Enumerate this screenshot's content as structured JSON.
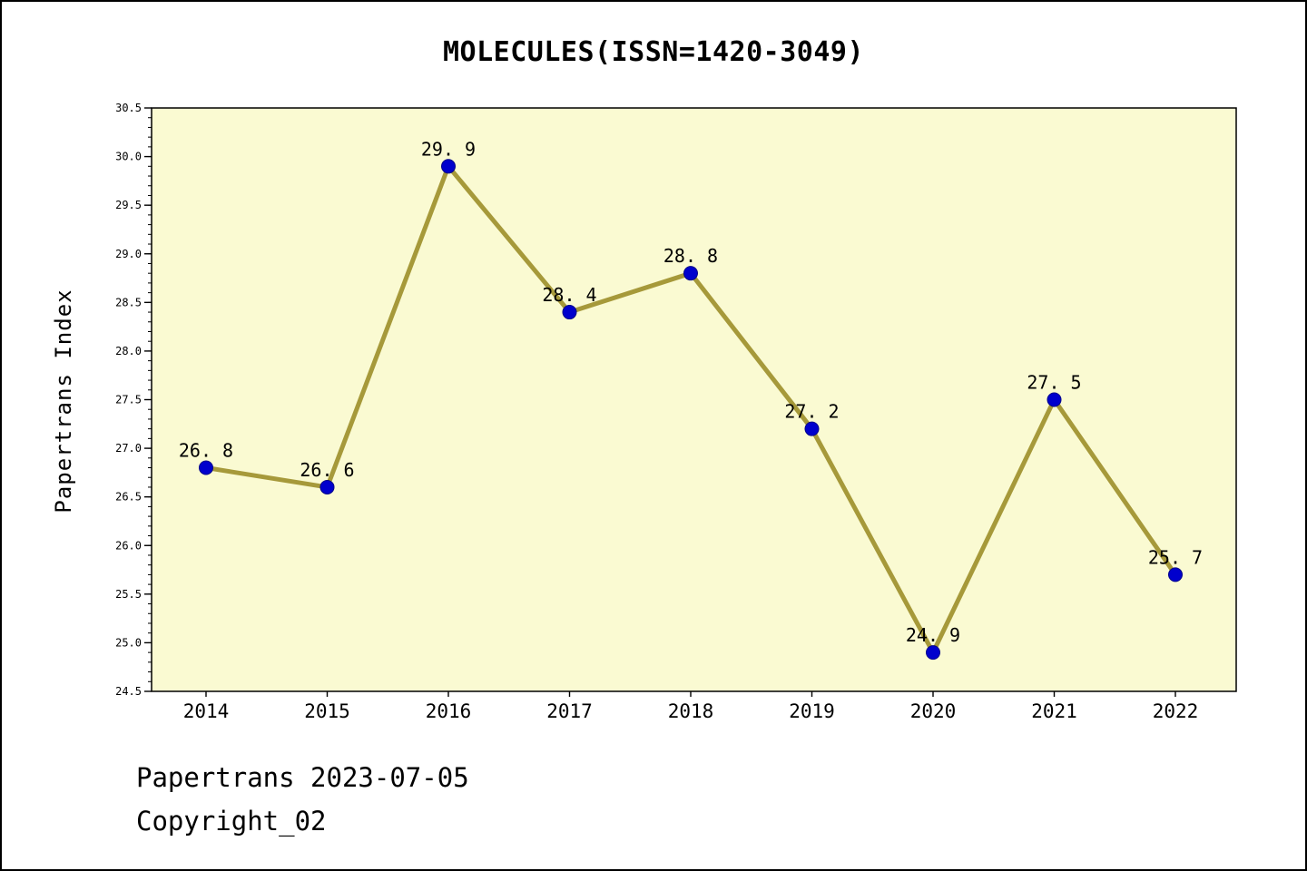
{
  "page": {
    "title": "MOLECULES(ISSN=1420-3049)",
    "footer_line1": "Papertrans 2023-07-05",
    "footer_line2": "Copyright_02"
  },
  "chart_data": {
    "type": "line",
    "title": "MOLECULES(ISSN=1420-3049)",
    "xlabel": "",
    "ylabel": "Papertrans Index",
    "categories": [
      2014,
      2015,
      2016,
      2017,
      2018,
      2019,
      2020,
      2021,
      2022
    ],
    "values": [
      26.8,
      26.6,
      29.9,
      28.4,
      28.8,
      27.2,
      24.9,
      27.5,
      25.7
    ],
    "point_labels": [
      "26. 8",
      "26. 6",
      "29. 9",
      "28. 4",
      "28. 8",
      "27. 2",
      "24. 9",
      "27. 5",
      "25. 7"
    ],
    "ylim": [
      24.5,
      30.5
    ],
    "ytick_step": 0.5,
    "yminor_step": 0.1,
    "grid": "off",
    "legend": "none",
    "colors": {
      "plot_background": "#FAFAD2",
      "line": "#A6993A",
      "marker": "#0000CD",
      "marker_edge": "#00008B",
      "text": "#000000",
      "axis": "#000000"
    }
  }
}
